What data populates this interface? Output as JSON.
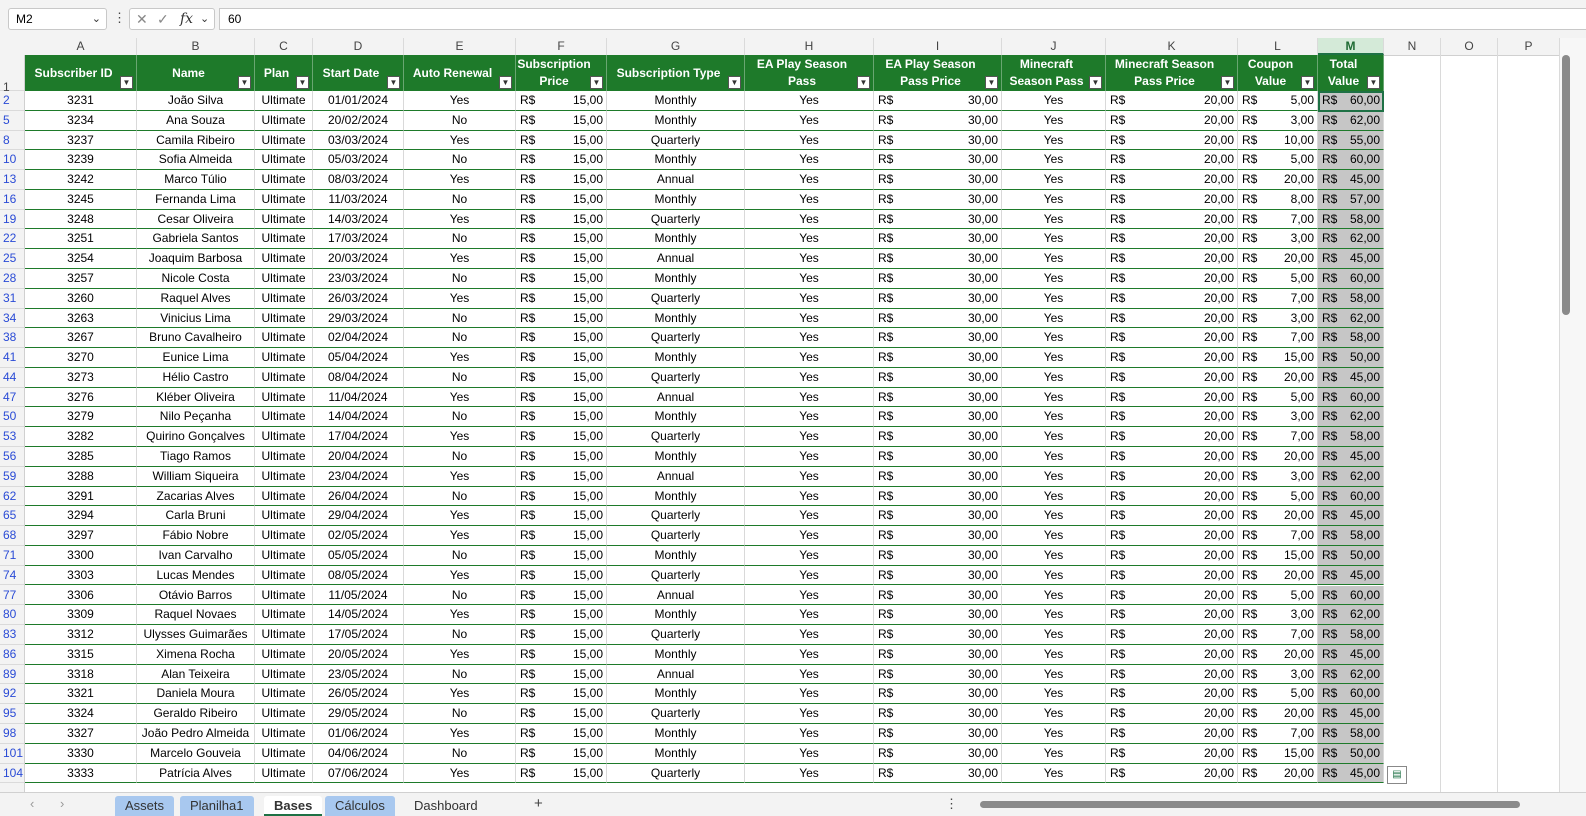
{
  "formula_bar": {
    "name_box": "M2",
    "formula": "60"
  },
  "columns": [
    "A",
    "B",
    "C",
    "D",
    "E",
    "F",
    "G",
    "H",
    "I",
    "J",
    "K",
    "L",
    "M",
    "N",
    "O",
    "P"
  ],
  "headers": [
    {
      "col": "A",
      "label": "Subscriber ID"
    },
    {
      "col": "B",
      "label": "Name"
    },
    {
      "col": "C",
      "label": "Plan"
    },
    {
      "col": "D",
      "label": "Start Date"
    },
    {
      "col": "E",
      "label": "Auto Renewal"
    },
    {
      "col": "F",
      "label": "Subscription Price"
    },
    {
      "col": "G",
      "label": "Subscription Type"
    },
    {
      "col": "H",
      "label": "EA Play Season Pass"
    },
    {
      "col": "I",
      "label": "EA Play Season Pass Price"
    },
    {
      "col": "J",
      "label": "Minecraft Season Pass"
    },
    {
      "col": "K",
      "label": "Minecraft Season Pass Price"
    },
    {
      "col": "L",
      "label": "Coupon Value"
    },
    {
      "col": "M",
      "label": "Total Value"
    }
  ],
  "currency": "R$",
  "rows": [
    {
      "row": "2",
      "id": "3231",
      "name": "João Silva",
      "plan": "Ultimate",
      "date": "01/01/2024",
      "renew": "Yes",
      "price": "15,00",
      "type": "Monthly",
      "ea": "Yes",
      "ea_price": "30,00",
      "mc": "Yes",
      "mc_price": "20,00",
      "coupon": "5,00",
      "total": "60,00"
    },
    {
      "row": "5",
      "id": "3234",
      "name": "Ana Souza",
      "plan": "Ultimate",
      "date": "20/02/2024",
      "renew": "No",
      "price": "15,00",
      "type": "Monthly",
      "ea": "Yes",
      "ea_price": "30,00",
      "mc": "Yes",
      "mc_price": "20,00",
      "coupon": "3,00",
      "total": "62,00"
    },
    {
      "row": "8",
      "id": "3237",
      "name": "Camila Ribeiro",
      "plan": "Ultimate",
      "date": "03/03/2024",
      "renew": "Yes",
      "price": "15,00",
      "type": "Quarterly",
      "ea": "Yes",
      "ea_price": "30,00",
      "mc": "Yes",
      "mc_price": "20,00",
      "coupon": "10,00",
      "total": "55,00"
    },
    {
      "row": "10",
      "id": "3239",
      "name": "Sofia Almeida",
      "plan": "Ultimate",
      "date": "05/03/2024",
      "renew": "No",
      "price": "15,00",
      "type": "Monthly",
      "ea": "Yes",
      "ea_price": "30,00",
      "mc": "Yes",
      "mc_price": "20,00",
      "coupon": "5,00",
      "total": "60,00"
    },
    {
      "row": "13",
      "id": "3242",
      "name": "Marco Túlio",
      "plan": "Ultimate",
      "date": "08/03/2024",
      "renew": "Yes",
      "price": "15,00",
      "type": "Annual",
      "ea": "Yes",
      "ea_price": "30,00",
      "mc": "Yes",
      "mc_price": "20,00",
      "coupon": "20,00",
      "total": "45,00"
    },
    {
      "row": "16",
      "id": "3245",
      "name": "Fernanda Lima",
      "plan": "Ultimate",
      "date": "11/03/2024",
      "renew": "No",
      "price": "15,00",
      "type": "Monthly",
      "ea": "Yes",
      "ea_price": "30,00",
      "mc": "Yes",
      "mc_price": "20,00",
      "coupon": "8,00",
      "total": "57,00"
    },
    {
      "row": "19",
      "id": "3248",
      "name": "Cesar Oliveira",
      "plan": "Ultimate",
      "date": "14/03/2024",
      "renew": "Yes",
      "price": "15,00",
      "type": "Quarterly",
      "ea": "Yes",
      "ea_price": "30,00",
      "mc": "Yes",
      "mc_price": "20,00",
      "coupon": "7,00",
      "total": "58,00"
    },
    {
      "row": "22",
      "id": "3251",
      "name": "Gabriela Santos",
      "plan": "Ultimate",
      "date": "17/03/2024",
      "renew": "No",
      "price": "15,00",
      "type": "Monthly",
      "ea": "Yes",
      "ea_price": "30,00",
      "mc": "Yes",
      "mc_price": "20,00",
      "coupon": "3,00",
      "total": "62,00"
    },
    {
      "row": "25",
      "id": "3254",
      "name": "Joaquim Barbosa",
      "plan": "Ultimate",
      "date": "20/03/2024",
      "renew": "Yes",
      "price": "15,00",
      "type": "Annual",
      "ea": "Yes",
      "ea_price": "30,00",
      "mc": "Yes",
      "mc_price": "20,00",
      "coupon": "20,00",
      "total": "45,00"
    },
    {
      "row": "28",
      "id": "3257",
      "name": "Nicole Costa",
      "plan": "Ultimate",
      "date": "23/03/2024",
      "renew": "No",
      "price": "15,00",
      "type": "Monthly",
      "ea": "Yes",
      "ea_price": "30,00",
      "mc": "Yes",
      "mc_price": "20,00",
      "coupon": "5,00",
      "total": "60,00"
    },
    {
      "row": "31",
      "id": "3260",
      "name": "Raquel Alves",
      "plan": "Ultimate",
      "date": "26/03/2024",
      "renew": "Yes",
      "price": "15,00",
      "type": "Quarterly",
      "ea": "Yes",
      "ea_price": "30,00",
      "mc": "Yes",
      "mc_price": "20,00",
      "coupon": "7,00",
      "total": "58,00"
    },
    {
      "row": "34",
      "id": "3263",
      "name": "Vinicius Lima",
      "plan": "Ultimate",
      "date": "29/03/2024",
      "renew": "No",
      "price": "15,00",
      "type": "Monthly",
      "ea": "Yes",
      "ea_price": "30,00",
      "mc": "Yes",
      "mc_price": "20,00",
      "coupon": "3,00",
      "total": "62,00"
    },
    {
      "row": "38",
      "id": "3267",
      "name": "Bruno Cavalheiro",
      "plan": "Ultimate",
      "date": "02/04/2024",
      "renew": "No",
      "price": "15,00",
      "type": "Quarterly",
      "ea": "Yes",
      "ea_price": "30,00",
      "mc": "Yes",
      "mc_price": "20,00",
      "coupon": "7,00",
      "total": "58,00"
    },
    {
      "row": "41",
      "id": "3270",
      "name": "Eunice Lima",
      "plan": "Ultimate",
      "date": "05/04/2024",
      "renew": "Yes",
      "price": "15,00",
      "type": "Monthly",
      "ea": "Yes",
      "ea_price": "30,00",
      "mc": "Yes",
      "mc_price": "20,00",
      "coupon": "15,00",
      "total": "50,00"
    },
    {
      "row": "44",
      "id": "3273",
      "name": "Hélio Castro",
      "plan": "Ultimate",
      "date": "08/04/2024",
      "renew": "No",
      "price": "15,00",
      "type": "Quarterly",
      "ea": "Yes",
      "ea_price": "30,00",
      "mc": "Yes",
      "mc_price": "20,00",
      "coupon": "20,00",
      "total": "45,00"
    },
    {
      "row": "47",
      "id": "3276",
      "name": "Kléber Oliveira",
      "plan": "Ultimate",
      "date": "11/04/2024",
      "renew": "Yes",
      "price": "15,00",
      "type": "Annual",
      "ea": "Yes",
      "ea_price": "30,00",
      "mc": "Yes",
      "mc_price": "20,00",
      "coupon": "5,00",
      "total": "60,00"
    },
    {
      "row": "50",
      "id": "3279",
      "name": "Nilo Peçanha",
      "plan": "Ultimate",
      "date": "14/04/2024",
      "renew": "No",
      "price": "15,00",
      "type": "Monthly",
      "ea": "Yes",
      "ea_price": "30,00",
      "mc": "Yes",
      "mc_price": "20,00",
      "coupon": "3,00",
      "total": "62,00"
    },
    {
      "row": "53",
      "id": "3282",
      "name": "Quirino Gonçalves",
      "plan": "Ultimate",
      "date": "17/04/2024",
      "renew": "Yes",
      "price": "15,00",
      "type": "Quarterly",
      "ea": "Yes",
      "ea_price": "30,00",
      "mc": "Yes",
      "mc_price": "20,00",
      "coupon": "7,00",
      "total": "58,00"
    },
    {
      "row": "56",
      "id": "3285",
      "name": "Tiago Ramos",
      "plan": "Ultimate",
      "date": "20/04/2024",
      "renew": "No",
      "price": "15,00",
      "type": "Monthly",
      "ea": "Yes",
      "ea_price": "30,00",
      "mc": "Yes",
      "mc_price": "20,00",
      "coupon": "20,00",
      "total": "45,00"
    },
    {
      "row": "59",
      "id": "3288",
      "name": "William Siqueira",
      "plan": "Ultimate",
      "date": "23/04/2024",
      "renew": "Yes",
      "price": "15,00",
      "type": "Annual",
      "ea": "Yes",
      "ea_price": "30,00",
      "mc": "Yes",
      "mc_price": "20,00",
      "coupon": "3,00",
      "total": "62,00"
    },
    {
      "row": "62",
      "id": "3291",
      "name": "Zacarias Alves",
      "plan": "Ultimate",
      "date": "26/04/2024",
      "renew": "No",
      "price": "15,00",
      "type": "Monthly",
      "ea": "Yes",
      "ea_price": "30,00",
      "mc": "Yes",
      "mc_price": "20,00",
      "coupon": "5,00",
      "total": "60,00"
    },
    {
      "row": "65",
      "id": "3294",
      "name": "Carla Bruni",
      "plan": "Ultimate",
      "date": "29/04/2024",
      "renew": "Yes",
      "price": "15,00",
      "type": "Quarterly",
      "ea": "Yes",
      "ea_price": "30,00",
      "mc": "Yes",
      "mc_price": "20,00",
      "coupon": "20,00",
      "total": "45,00"
    },
    {
      "row": "68",
      "id": "3297",
      "name": "Fábio Nobre",
      "plan": "Ultimate",
      "date": "02/05/2024",
      "renew": "Yes",
      "price": "15,00",
      "type": "Quarterly",
      "ea": "Yes",
      "ea_price": "30,00",
      "mc": "Yes",
      "mc_price": "20,00",
      "coupon": "7,00",
      "total": "58,00"
    },
    {
      "row": "71",
      "id": "3300",
      "name": "Ivan Carvalho",
      "plan": "Ultimate",
      "date": "05/05/2024",
      "renew": "No",
      "price": "15,00",
      "type": "Monthly",
      "ea": "Yes",
      "ea_price": "30,00",
      "mc": "Yes",
      "mc_price": "20,00",
      "coupon": "15,00",
      "total": "50,00"
    },
    {
      "row": "74",
      "id": "3303",
      "name": "Lucas Mendes",
      "plan": "Ultimate",
      "date": "08/05/2024",
      "renew": "Yes",
      "price": "15,00",
      "type": "Quarterly",
      "ea": "Yes",
      "ea_price": "30,00",
      "mc": "Yes",
      "mc_price": "20,00",
      "coupon": "20,00",
      "total": "45,00"
    },
    {
      "row": "77",
      "id": "3306",
      "name": "Otávio Barros",
      "plan": "Ultimate",
      "date": "11/05/2024",
      "renew": "No",
      "price": "15,00",
      "type": "Annual",
      "ea": "Yes",
      "ea_price": "30,00",
      "mc": "Yes",
      "mc_price": "20,00",
      "coupon": "5,00",
      "total": "60,00"
    },
    {
      "row": "80",
      "id": "3309",
      "name": "Raquel Novaes",
      "plan": "Ultimate",
      "date": "14/05/2024",
      "renew": "Yes",
      "price": "15,00",
      "type": "Monthly",
      "ea": "Yes",
      "ea_price": "30,00",
      "mc": "Yes",
      "mc_price": "20,00",
      "coupon": "3,00",
      "total": "62,00"
    },
    {
      "row": "83",
      "id": "3312",
      "name": "Ulysses Guimarães",
      "plan": "Ultimate",
      "date": "17/05/2024",
      "renew": "No",
      "price": "15,00",
      "type": "Quarterly",
      "ea": "Yes",
      "ea_price": "30,00",
      "mc": "Yes",
      "mc_price": "20,00",
      "coupon": "7,00",
      "total": "58,00"
    },
    {
      "row": "86",
      "id": "3315",
      "name": "Ximena Rocha",
      "plan": "Ultimate",
      "date": "20/05/2024",
      "renew": "Yes",
      "price": "15,00",
      "type": "Monthly",
      "ea": "Yes",
      "ea_price": "30,00",
      "mc": "Yes",
      "mc_price": "20,00",
      "coupon": "20,00",
      "total": "45,00"
    },
    {
      "row": "89",
      "id": "3318",
      "name": "Alan Teixeira",
      "plan": "Ultimate",
      "date": "23/05/2024",
      "renew": "No",
      "price": "15,00",
      "type": "Annual",
      "ea": "Yes",
      "ea_price": "30,00",
      "mc": "Yes",
      "mc_price": "20,00",
      "coupon": "3,00",
      "total": "62,00"
    },
    {
      "row": "92",
      "id": "3321",
      "name": "Daniela Moura",
      "plan": "Ultimate",
      "date": "26/05/2024",
      "renew": "Yes",
      "price": "15,00",
      "type": "Monthly",
      "ea": "Yes",
      "ea_price": "30,00",
      "mc": "Yes",
      "mc_price": "20,00",
      "coupon": "5,00",
      "total": "60,00"
    },
    {
      "row": "95",
      "id": "3324",
      "name": "Geraldo Ribeiro",
      "plan": "Ultimate",
      "date": "29/05/2024",
      "renew": "No",
      "price": "15,00",
      "type": "Quarterly",
      "ea": "Yes",
      "ea_price": "30,00",
      "mc": "Yes",
      "mc_price": "20,00",
      "coupon": "20,00",
      "total": "45,00"
    },
    {
      "row": "98",
      "id": "3327",
      "name": "João Pedro Almeida",
      "plan": "Ultimate",
      "date": "01/06/2024",
      "renew": "Yes",
      "price": "15,00",
      "type": "Monthly",
      "ea": "Yes",
      "ea_price": "30,00",
      "mc": "Yes",
      "mc_price": "20,00",
      "coupon": "7,00",
      "total": "58,00"
    },
    {
      "row": "101",
      "id": "3330",
      "name": "Marcelo Gouveia",
      "plan": "Ultimate",
      "date": "04/06/2024",
      "renew": "No",
      "price": "15,00",
      "type": "Monthly",
      "ea": "Yes",
      "ea_price": "30,00",
      "mc": "Yes",
      "mc_price": "20,00",
      "coupon": "15,00",
      "total": "50,00"
    },
    {
      "row": "104",
      "id": "3333",
      "name": "Patrícia Alves",
      "plan": "Ultimate",
      "date": "07/06/2024",
      "renew": "Yes",
      "price": "15,00",
      "type": "Quarterly",
      "ea": "Yes",
      "ea_price": "30,00",
      "mc": "Yes",
      "mc_price": "20,00",
      "coupon": "20,00",
      "total": "45,00"
    }
  ],
  "sheet_tabs": [
    {
      "label": "Assets",
      "state": "colored"
    },
    {
      "label": "Planilha1",
      "state": "colored"
    },
    {
      "label": "Bases",
      "state": "active"
    },
    {
      "label": "Cálculos",
      "state": "colored"
    },
    {
      "label": "Dashboard",
      "state": "plain"
    }
  ],
  "header_row_number": "1",
  "icons": {
    "cancel": "close-icon",
    "enter": "check-icon",
    "function": "fx-icon",
    "add_sheet": "plus-icon"
  }
}
